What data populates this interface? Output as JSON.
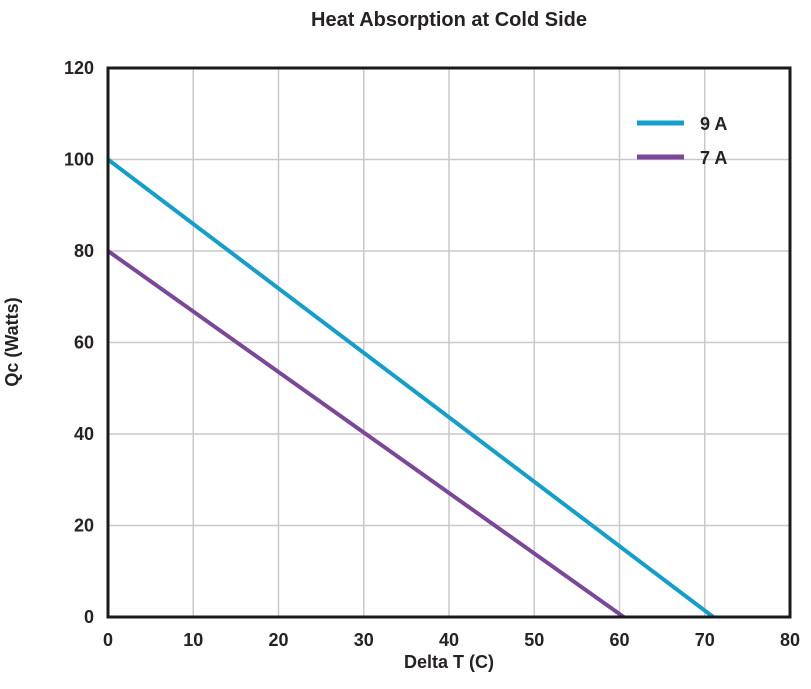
{
  "chart_data": {
    "type": "line",
    "title": "Heat Absorption at Cold Side",
    "xlabel": "Delta T (C)",
    "ylabel": "Qc (Watts)",
    "xlim": [
      0,
      80
    ],
    "ylim": [
      0,
      120
    ],
    "xticks": [
      0,
      10,
      20,
      30,
      40,
      50,
      60,
      70,
      80
    ],
    "yticks": [
      0,
      20,
      40,
      60,
      80,
      100,
      120
    ],
    "grid": true,
    "legend_position": "top-right-inside",
    "series": [
      {
        "name": "9 A",
        "color": "#149ECC",
        "points": [
          [
            0,
            100
          ],
          [
            71,
            0
          ]
        ]
      },
      {
        "name": "7 A",
        "color": "#7B4799",
        "points": [
          [
            0,
            80
          ],
          [
            60.5,
            0
          ]
        ]
      }
    ]
  },
  "colors": {
    "text": "#262224",
    "grid": "#C9C9C9",
    "axis": "#1A1A1A",
    "background": "#FFFFFF"
  }
}
